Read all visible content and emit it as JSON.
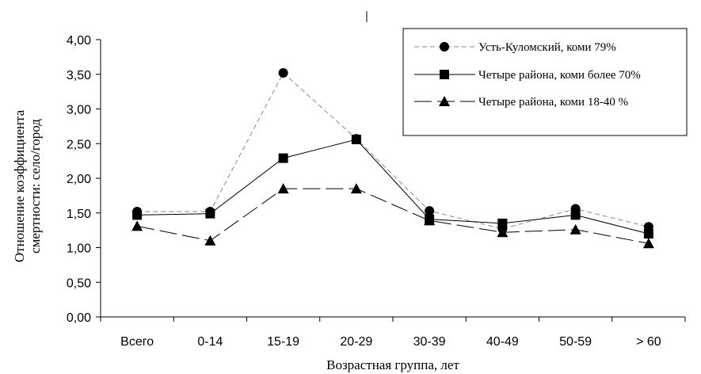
{
  "chart_data": {
    "type": "line",
    "categories": [
      "Всего",
      "0-14",
      "15-19",
      "20-29",
      "30-39",
      "40-49",
      "50-59",
      "> 60"
    ],
    "series": [
      {
        "name": "Усть-Куломский, коми 79%",
        "values": [
          1.52,
          1.52,
          3.52,
          2.57,
          1.53,
          1.27,
          1.56,
          1.3
        ],
        "marker": "circle",
        "line": "short-dash",
        "color": "#888888"
      },
      {
        "name": "Четыре района, коми более 70%",
        "values": [
          1.47,
          1.49,
          2.29,
          2.56,
          1.41,
          1.35,
          1.47,
          1.2
        ],
        "marker": "square",
        "line": "solid",
        "color": "#000000"
      },
      {
        "name": "Четыре района, коми 18-40 %",
        "values": [
          1.31,
          1.1,
          1.85,
          1.85,
          1.39,
          1.22,
          1.26,
          1.06
        ],
        "marker": "triangle",
        "line": "long-dash",
        "color": "#000000"
      }
    ],
    "yticks": [
      "0,00",
      "0,50",
      "1,00",
      "1,50",
      "2,00",
      "2,50",
      "3,00",
      "3,50",
      "4,00"
    ],
    "ylim": [
      0,
      4
    ],
    "xlabel": "Возрастная группа, лет",
    "ylabel_line1": "Отношение коэффициента",
    "ylabel_line2": "смертности: село/город",
    "legend_position": "top-right",
    "grid": false
  }
}
